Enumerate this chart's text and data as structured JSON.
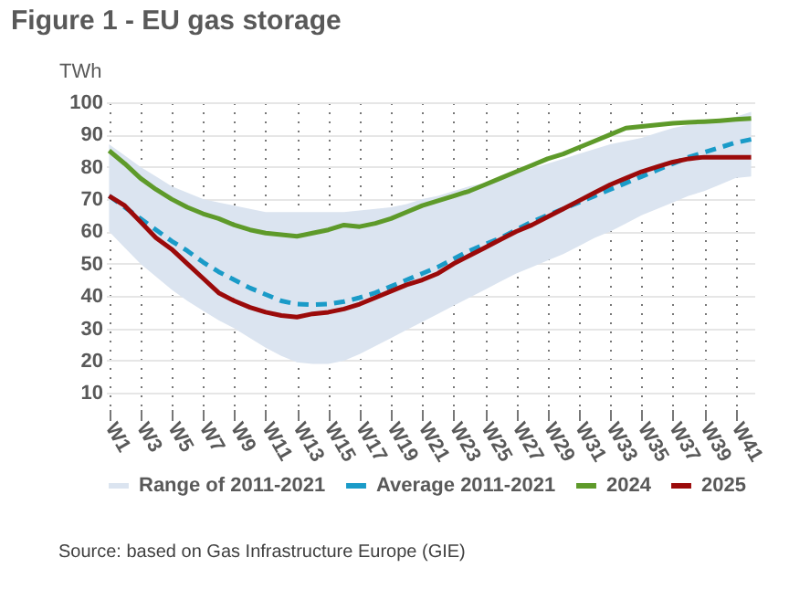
{
  "chart_data": {
    "type": "line",
    "title": "Figure 1 - EU gas storage",
    "ylabel": "TWh",
    "categories": [
      "W1",
      null,
      "W3",
      null,
      "W5",
      null,
      "W7",
      null,
      "W9",
      null,
      "W11",
      null,
      "W13",
      null,
      "W15",
      null,
      "W17",
      null,
      "W19",
      null,
      "W21",
      null,
      "W23",
      null,
      "W25",
      null,
      "W27",
      null,
      "W29",
      null,
      "W31",
      null,
      "W33",
      null,
      "W35",
      null,
      "W37",
      null,
      "W39",
      null,
      "W41",
      null
    ],
    "ylim": [
      5,
      100
    ],
    "yticks": [
      10,
      20,
      30,
      40,
      50,
      60,
      70,
      80,
      90,
      100
    ],
    "grid": true,
    "legend": "bottom",
    "series": [
      {
        "name": "Range of 2011-2021",
        "type": "area",
        "color": "#dbe4f0",
        "values": [
          null,
          null,
          null,
          null,
          null,
          null,
          null,
          null,
          null,
          null,
          null,
          null,
          null,
          null,
          null,
          null,
          null,
          null,
          null,
          null,
          null,
          null,
          null,
          null,
          null,
          null,
          null,
          null,
          null,
          null,
          null,
          null,
          null,
          null,
          null,
          null,
          null,
          null,
          null,
          null,
          null,
          null
        ],
        "lower": [
          60,
          55,
          50,
          46,
          42,
          38.5,
          35.5,
          32.5,
          30,
          27,
          24,
          21.5,
          19.5,
          19,
          19,
          20,
          22,
          24.5,
          27,
          29.5,
          32,
          34.5,
          37,
          39.5,
          42,
          44.5,
          47,
          49,
          51,
          53,
          55.5,
          58,
          60,
          62.5,
          65,
          67,
          69,
          71,
          72.5,
          74.5,
          76.5,
          77
        ],
        "upper": [
          87,
          83.5,
          80,
          77,
          74,
          72,
          70,
          69,
          68,
          67,
          66,
          66,
          66,
          66,
          66,
          66,
          66.5,
          67,
          67.5,
          68.5,
          70,
          71,
          72.5,
          74,
          75,
          76.5,
          78,
          79.5,
          81,
          82.5,
          84,
          85.5,
          87,
          88,
          89,
          90.5,
          92,
          93,
          93.5,
          94.5,
          95.5,
          97
        ]
      },
      {
        "name": "Average 2011-2021",
        "line_style": "dashed",
        "color": "#1a9bc8",
        "values": [
          71,
          67.5,
          64,
          60.5,
          57,
          54,
          50.5,
          47.5,
          45,
          42.5,
          40.5,
          38.5,
          37.5,
          37.3,
          37.5,
          38.3,
          39.5,
          41,
          43,
          45,
          47,
          49,
          51.5,
          54,
          56,
          58,
          60.5,
          63,
          65,
          67,
          69,
          71,
          73,
          75,
          77,
          79,
          81,
          83,
          84.5,
          86,
          87.5,
          88.5
        ]
      },
      {
        "name": "2024",
        "line_style": "solid",
        "color": "#5e9a2a",
        "values": [
          85,
          81,
          76.5,
          73,
          70,
          67.5,
          65.5,
          64,
          62,
          60.5,
          59.5,
          59,
          58.5,
          59.5,
          60.5,
          62,
          61.5,
          62.5,
          64,
          66,
          68,
          69.5,
          71,
          72.5,
          74.5,
          76.5,
          78.5,
          80.5,
          82.5,
          84,
          86,
          88,
          90,
          92,
          92.5,
          93,
          93.5,
          93.8,
          94,
          94.3,
          94.7,
          95
        ]
      },
      {
        "name": "2025",
        "line_style": "solid",
        "color": "#9b0a0a",
        "values": [
          71,
          68,
          63,
          58,
          54.5,
          50,
          45.5,
          41,
          38.5,
          36.5,
          35,
          34,
          33.5,
          34.5,
          35,
          36,
          37.5,
          39.5,
          41.5,
          43.5,
          45,
          47,
          50,
          52.5,
          55,
          57.5,
          60,
          62,
          64.5,
          67,
          69.5,
          72,
          74.5,
          76.5,
          78.5,
          80,
          81.5,
          82.5,
          83,
          83,
          83,
          83
        ]
      }
    ],
    "annotations": [
      "Source: based on Gas Infrastructure Europe (GIE)"
    ]
  }
}
